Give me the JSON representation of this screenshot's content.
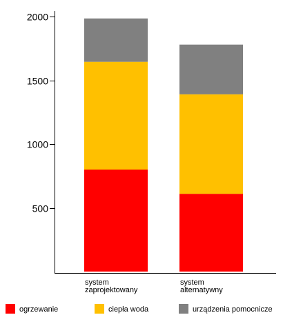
{
  "chart_data": {
    "type": "bar",
    "stacked": true,
    "categories": [
      [
        "system",
        "zaprojektowany"
      ],
      [
        "system",
        "alternatywny"
      ]
    ],
    "series": [
      {
        "name": "ogrzewanie",
        "color": "#ff0000",
        "values": [
          800,
          610
        ]
      },
      {
        "name": "ciepła woda",
        "color": "#ffc000",
        "values": [
          845,
          780
        ]
      },
      {
        "name": "urządzenia pomocnicze",
        "color": "#808080",
        "values": [
          340,
          390
        ]
      }
    ],
    "y_ticks": [
      500,
      1000,
      1500,
      2000
    ],
    "ylim": [
      0,
      2000
    ],
    "title": "",
    "xlabel": "",
    "ylabel": "",
    "grid": false,
    "legend_position": "bottom"
  }
}
